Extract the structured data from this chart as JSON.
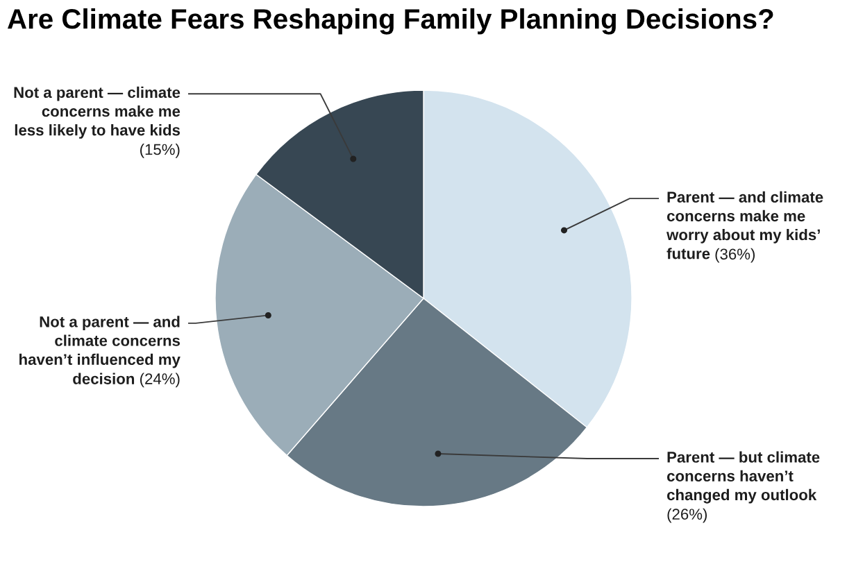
{
  "chart_data": {
    "type": "pie",
    "title": "Are Climate Fears Reshaping Family Planning Decisions?",
    "categories": [
      "Parent — and climate\nconcerns make me\nworry about my kids’\nfuture",
      "Parent — but climate\nconcerns haven’t\nchanged my outlook",
      "Not a parent — and\nclimate concerns\nhaven’t influenced my\ndecision",
      "Not a parent — climate\nconcerns make me\nless likely to have kids"
    ],
    "values": [
      36,
      26,
      24,
      15
    ],
    "colors": [
      "#d3e3ee",
      "#677985",
      "#9badb8",
      "#374753"
    ],
    "value_labels": [
      "(36%)",
      "(26%)",
      "(24%)",
      "(15%)"
    ]
  }
}
